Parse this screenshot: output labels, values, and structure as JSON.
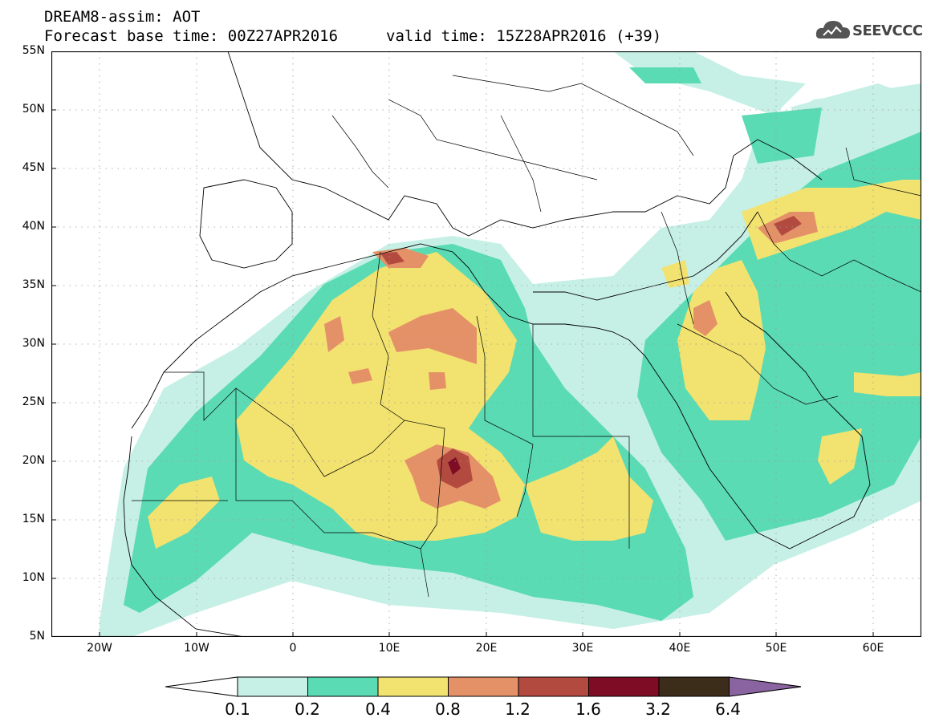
{
  "header": {
    "title_line1": "DREAM8-assim: AOT",
    "title_line2": "Forecast base time: 00Z27APR2016",
    "valid_time": "valid time: 15Z28APR2016 (+39)",
    "logo_text": "SEEVCCC"
  },
  "map": {
    "projection": "lat-lon",
    "lon_range": [
      -25,
      65
    ],
    "lat_range": [
      5,
      55
    ],
    "lat_labels": [
      "55N",
      "50N",
      "45N",
      "40N",
      "35N",
      "30N",
      "25N",
      "20N",
      "15N",
      "10N",
      "5N"
    ],
    "lon_labels": [
      "20W",
      "10W",
      "0",
      "10E",
      "20E",
      "30E",
      "40E",
      "50E",
      "60E"
    ],
    "gridlines": true
  },
  "colorbar": {
    "levels": [
      "0.1",
      "0.2",
      "0.4",
      "0.8",
      "1.2",
      "1.6",
      "3.2",
      "6.4"
    ],
    "colors": [
      "#c6f0e6",
      "#5adbb3",
      "#f2e270",
      "#e59168",
      "#b34a40",
      "#7d0c24",
      "#3c2c1a",
      "#8a64a0"
    ],
    "below_min_color": "#ffffff"
  }
}
